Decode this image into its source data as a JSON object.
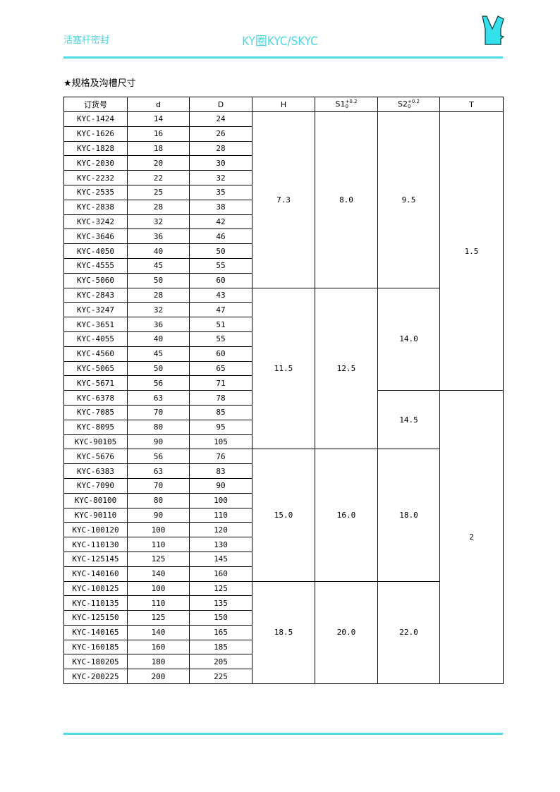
{
  "header": {
    "category": "活塞杆密封",
    "title": "KY圈KYC/SKYC",
    "logo_color": "#33e0ec"
  },
  "section_title": "★规格及沟槽尺寸",
  "table": {
    "columns": [
      "订货号",
      "d",
      "D",
      "H",
      "S1",
      "S2",
      "T"
    ],
    "tolerance": {
      "upper": "+0.2",
      "lower": "0"
    },
    "rows": [
      [
        "KYC-1424",
        "14",
        "24"
      ],
      [
        "KYC-1626",
        "16",
        "26"
      ],
      [
        "KYC-1828",
        "18",
        "28"
      ],
      [
        "KYC-2030",
        "20",
        "30"
      ],
      [
        "KYC-2232",
        "22",
        "32"
      ],
      [
        "KYC-2535",
        "25",
        "35"
      ],
      [
        "KYC-2838",
        "28",
        "38"
      ],
      [
        "KYC-3242",
        "32",
        "42"
      ],
      [
        "KYC-3646",
        "36",
        "46"
      ],
      [
        "KYC-4050",
        "40",
        "50"
      ],
      [
        "KYC-4555",
        "45",
        "55"
      ],
      [
        "KYC-5060",
        "50",
        "60"
      ],
      [
        "KYC-2843",
        "28",
        "43"
      ],
      [
        "KYC-3247",
        "32",
        "47"
      ],
      [
        "KYC-3651",
        "36",
        "51"
      ],
      [
        "KYC-4055",
        "40",
        "55"
      ],
      [
        "KYC-4560",
        "45",
        "60"
      ],
      [
        "KYC-5065",
        "50",
        "65"
      ],
      [
        "KYC-5671",
        "56",
        "71"
      ],
      [
        "KYC-6378",
        "63",
        "78"
      ],
      [
        "KYC-7085",
        "70",
        "85"
      ],
      [
        "KYC-8095",
        "80",
        "95"
      ],
      [
        "KYC-90105",
        "90",
        "105"
      ],
      [
        "KYC-5676",
        "56",
        "76"
      ],
      [
        "KYC-6383",
        "63",
        "83"
      ],
      [
        "KYC-7090",
        "70",
        "90"
      ],
      [
        "KYC-80100",
        "80",
        "100"
      ],
      [
        "KYC-90110",
        "90",
        "110"
      ],
      [
        "KYC-100120",
        "100",
        "120"
      ],
      [
        "KYC-110130",
        "110",
        "130"
      ],
      [
        "KYC-125145",
        "125",
        "145"
      ],
      [
        "KYC-140160",
        "140",
        "160"
      ],
      [
        "KYC-100125",
        "100",
        "125"
      ],
      [
        "KYC-110135",
        "110",
        "135"
      ],
      [
        "KYC-125150",
        "125",
        "150"
      ],
      [
        "KYC-140165",
        "140",
        "165"
      ],
      [
        "KYC-160185",
        "160",
        "185"
      ],
      [
        "KYC-180205",
        "180",
        "205"
      ],
      [
        "KYC-200225",
        "200",
        "225"
      ]
    ],
    "H_groups": [
      {
        "start": 0,
        "span": 12,
        "value": "7.3"
      },
      {
        "start": 12,
        "span": 11,
        "value": "11.5"
      },
      {
        "start": 23,
        "span": 9,
        "value": "15.0"
      },
      {
        "start": 32,
        "span": 7,
        "value": "18.5"
      }
    ],
    "S1_groups": [
      {
        "start": 0,
        "span": 12,
        "value": "8.0"
      },
      {
        "start": 12,
        "span": 11,
        "value": "12.5"
      },
      {
        "start": 23,
        "span": 9,
        "value": "16.0"
      },
      {
        "start": 32,
        "span": 7,
        "value": "20.0"
      }
    ],
    "S2_groups": [
      {
        "start": 0,
        "span": 12,
        "value": "9.5"
      },
      {
        "start": 12,
        "span": 7,
        "value": "14.0"
      },
      {
        "start": 19,
        "span": 4,
        "value": "14.5"
      },
      {
        "start": 23,
        "span": 9,
        "value": "18.0"
      },
      {
        "start": 32,
        "span": 7,
        "value": "22.0"
      }
    ],
    "T_groups": [
      {
        "start": 0,
        "span": 19,
        "value": "1.5"
      },
      {
        "start": 19,
        "span": 20,
        "value": "2"
      }
    ]
  }
}
